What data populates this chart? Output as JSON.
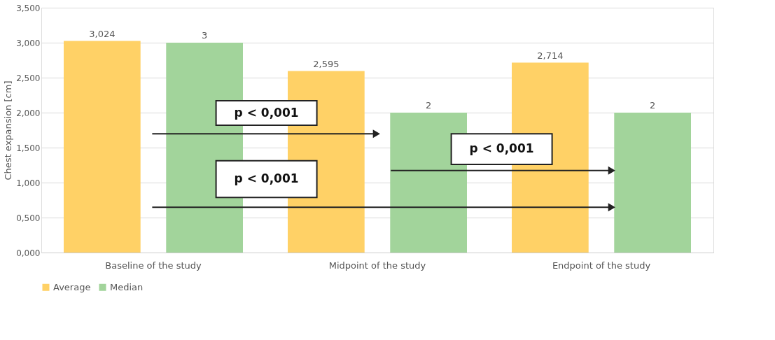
{
  "chart_data": {
    "type": "bar",
    "ylabel": "Chest expansion [cm]",
    "categories": [
      "Baseline of the study",
      "Midpoint of the study",
      "Endpoint of the study"
    ],
    "series": [
      {
        "name": "Average",
        "color": "#ffd166",
        "values": [
          3.024,
          2.595,
          2.714
        ],
        "value_labels": [
          "3,024",
          "2,595",
          "2,714"
        ]
      },
      {
        "name": "Median",
        "color": "#a2d49b",
        "values": [
          3,
          2,
          2
        ],
        "value_labels": [
          "3",
          "2",
          "2"
        ]
      }
    ],
    "ylim": [
      0,
      3.5
    ],
    "yticks": [
      {
        "value": 0,
        "label": "0,000"
      },
      {
        "value": 0.5,
        "label": "0,500"
      },
      {
        "value": 1,
        "label": "1,000"
      },
      {
        "value": 1.5,
        "label": "1,500"
      },
      {
        "value": 2,
        "label": "2,000"
      },
      {
        "value": 2.5,
        "label": "2,500"
      },
      {
        "value": 3,
        "label": "3,000"
      },
      {
        "value": 3.5,
        "label": "3,500"
      }
    ],
    "grid": "y",
    "legend": "bottom",
    "annotations": [
      "p < 0,001",
      "p < 0,001",
      "p < 0,001"
    ]
  }
}
